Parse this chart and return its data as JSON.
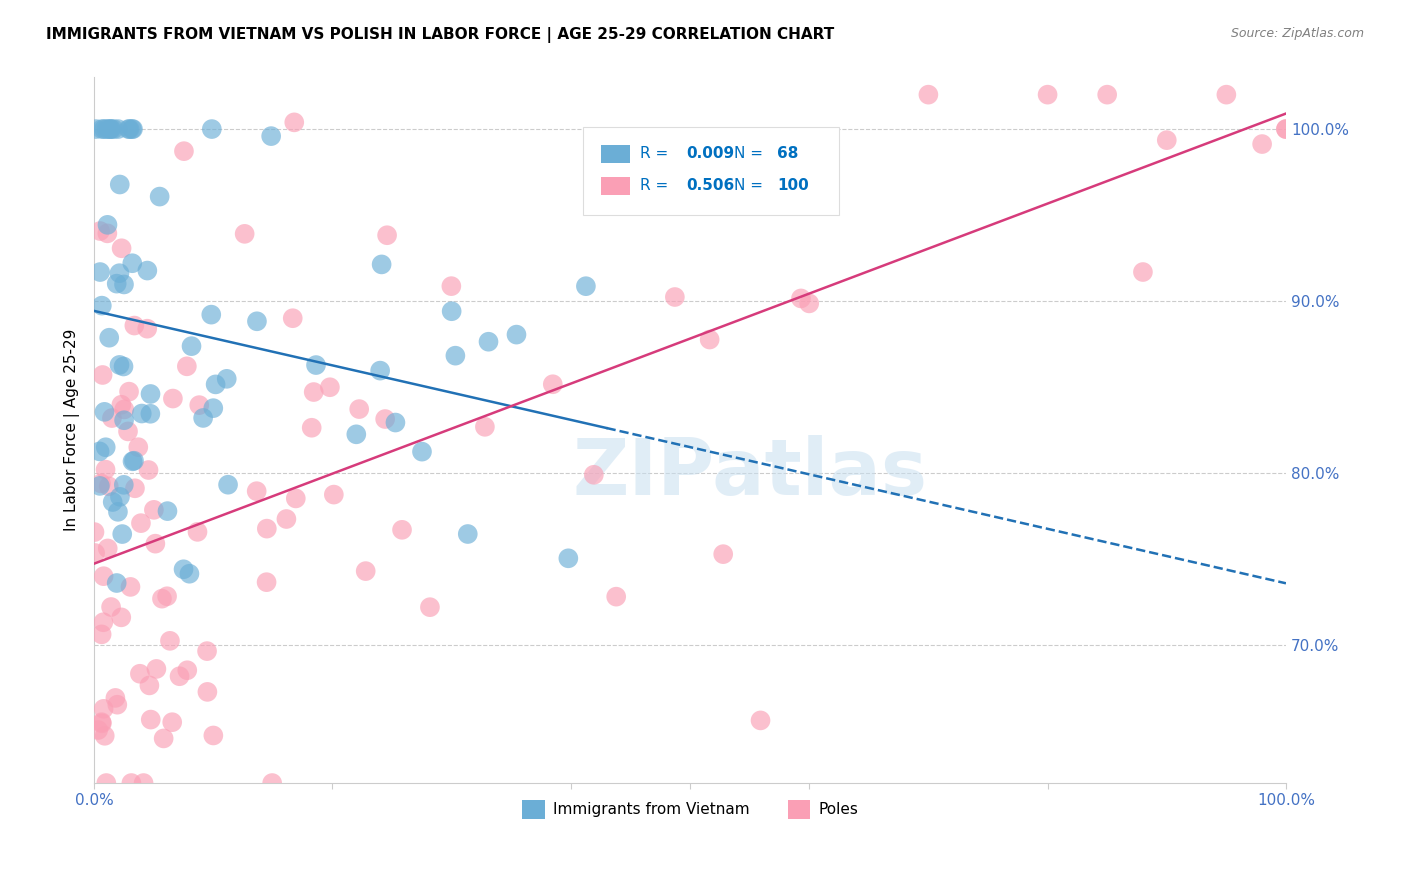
{
  "title": "IMMIGRANTS FROM VIETNAM VS POLISH IN LABOR FORCE | AGE 25-29 CORRELATION CHART",
  "source": "Source: ZipAtlas.com",
  "ylabel": "In Labor Force | Age 25-29",
  "ytick_labels": [
    "70.0%",
    "80.0%",
    "90.0%",
    "100.0%"
  ],
  "ytick_values": [
    0.7,
    0.8,
    0.9,
    1.0
  ],
  "xlim": [
    0.0,
    1.0
  ],
  "ylim": [
    0.62,
    1.03
  ],
  "legend_R_vietnam": "0.009",
  "legend_N_vietnam": "68",
  "legend_R_polish": "0.506",
  "legend_N_polish": "100",
  "color_vietnam": "#6baed6",
  "color_polish": "#fa9fb5",
  "color_vietnam_line": "#2171b5",
  "color_polish_line": "#d63b7b",
  "watermark": "ZIPatlas",
  "grid_color": "#cccccc",
  "background_color": "#ffffff",
  "axis_label_color": "#4472c4",
  "legend_color": "#0070c0"
}
